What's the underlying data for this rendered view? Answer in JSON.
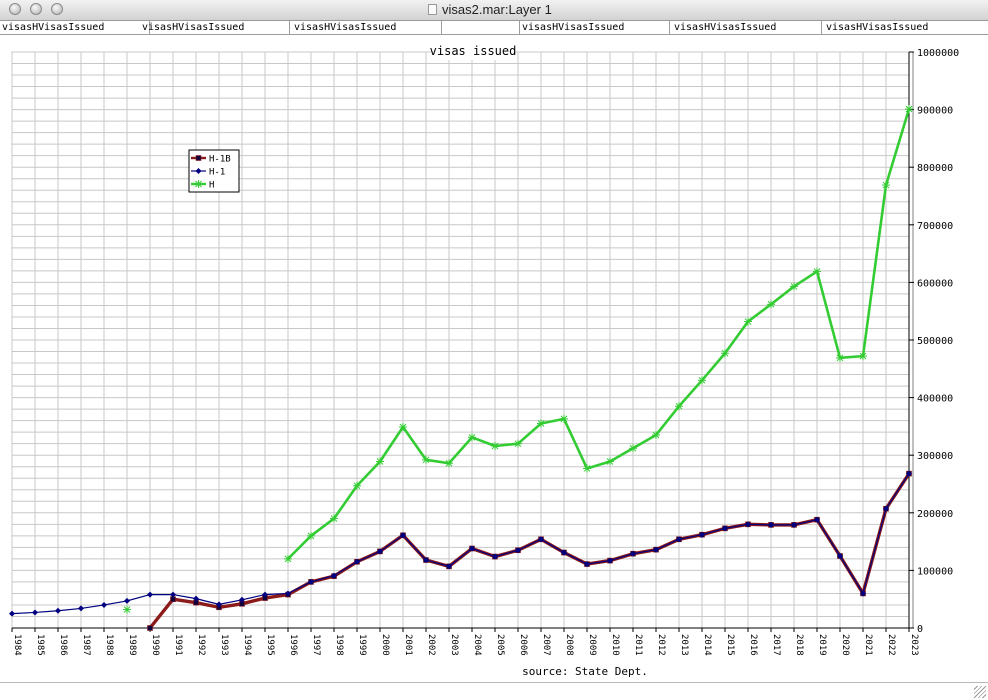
{
  "window": {
    "title": "visas2.mar:Layer 1",
    "tabs": [
      "visasHVisasIssued",
      "visasHVisasIssued",
      "visasHVisasIssued",
      "",
      "visasHVisasIssued",
      "visasHVisasIssued",
      "visasHVisasIssued"
    ]
  },
  "chart_data": {
    "type": "line",
    "title": "visas issued",
    "caption": "source: State Dept.",
    "xlabel": "",
    "ylabel": "",
    "x": [
      1984,
      1985,
      1986,
      1987,
      1988,
      1989,
      1990,
      1991,
      1992,
      1993,
      1994,
      1995,
      1996,
      1997,
      1998,
      1999,
      2000,
      2001,
      2002,
      2003,
      2004,
      2005,
      2006,
      2007,
      2008,
      2009,
      2010,
      2011,
      2012,
      2013,
      2014,
      2015,
      2016,
      2017,
      2018,
      2019,
      2020,
      2021,
      2022,
      2023
    ],
    "xlim": [
      1984,
      2023
    ],
    "ylim": [
      0,
      1000000
    ],
    "y_ticks": [
      0,
      100000,
      200000,
      300000,
      400000,
      500000,
      600000,
      700000,
      800000,
      900000,
      1000000
    ],
    "y_axis_side": "right",
    "grid": true,
    "legend_position": "top-left",
    "series": [
      {
        "name": "H-1B",
        "color": "#8b1a1a",
        "marker": "square",
        "values": [
          null,
          null,
          null,
          null,
          null,
          null,
          0,
          50000,
          44000,
          36000,
          42000,
          52000,
          58000,
          80000,
          90000,
          115000,
          133000,
          161000,
          118000,
          107000,
          138000,
          124000,
          135000,
          154000,
          131000,
          111000,
          117000,
          129000,
          136000,
          154000,
          162000,
          173000,
          180000,
          179000,
          179000,
          188000,
          125000,
          60000,
          207000,
          268000
        ]
      },
      {
        "name": "H-1",
        "color": "#000080",
        "marker": "diamond",
        "values": [
          25000,
          27000,
          30000,
          34000,
          40000,
          47000,
          58000,
          58000,
          51000,
          41000,
          49000,
          58000,
          60000,
          80000,
          91000,
          115000,
          133000,
          161000,
          118000,
          107000,
          138000,
          124000,
          135000,
          154000,
          131000,
          111000,
          117000,
          129000,
          136000,
          154000,
          162000,
          173000,
          180000,
          179000,
          179000,
          188000,
          125000,
          60000,
          207000,
          268000
        ]
      },
      {
        "name": "H",
        "color": "#33cc33",
        "marker": "star",
        "values": [
          null,
          null,
          null,
          null,
          null,
          32000,
          null,
          null,
          null,
          null,
          null,
          null,
          120000,
          160000,
          190000,
          247000,
          289000,
          349000,
          292000,
          286000,
          331000,
          316000,
          320000,
          355000,
          363000,
          277000,
          289000,
          312000,
          335000,
          385000,
          430000,
          477000,
          532000,
          562000,
          593000,
          619000,
          469000,
          472000,
          769000,
          901000
        ]
      }
    ]
  }
}
